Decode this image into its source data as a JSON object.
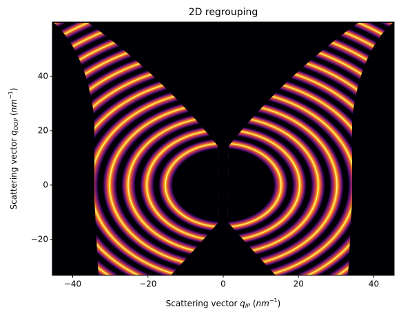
{
  "chart_data": {
    "type": "image",
    "title": "2D regrouping",
    "xlabel": [
      "Scattering vector ",
      "q",
      "IP",
      " (",
      "nm",
      "−1",
      ")"
    ],
    "ylabel": [
      "Scattering vector ",
      "q",
      "OOP",
      " (",
      "nm",
      "−1",
      ")"
    ],
    "xlim": [
      -45.4,
      45.4
    ],
    "ylim": [
      -33.2,
      60
    ],
    "xticks": [
      {
        "value": -40,
        "label": "−40"
      },
      {
        "value": -20,
        "label": "−20"
      },
      0,
      20,
      40
    ],
    "yticks": [
      {
        "value": -20,
        "label": "−20"
      },
      0,
      20,
      40
    ]
  }
}
